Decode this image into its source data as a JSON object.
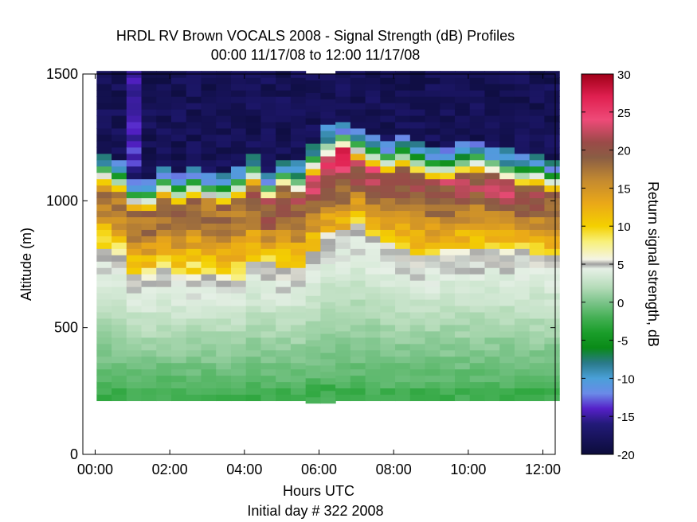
{
  "chart_data": {
    "type": "heatmap",
    "title": "HRDL RV Brown VOCALS 2008 - Signal Strength (dB) Profiles",
    "subtitle": "00:00 11/17/08 to 12:00 11/17/08",
    "xlabel": "Hours UTC",
    "xsublabel": "Initial day # 322  2008",
    "ylabel": "Altitude (m)",
    "xlim": [
      -0.33,
      12.33
    ],
    "ylim": [
      0,
      1500
    ],
    "x_tick_values": [
      0,
      2,
      4,
      6,
      8,
      10,
      12
    ],
    "x_tick_labels": [
      "00:00",
      "02:00",
      "04:00",
      "06:00",
      "08:00",
      "10:00",
      "12:00"
    ],
    "y_ticks": [
      0,
      500,
      1000,
      1500
    ],
    "grid": false,
    "colorbar": {
      "label": "Return signal strength, dB",
      "range": [
        -20,
        30
      ],
      "ticks": [
        -20,
        -15,
        -10,
        -5,
        0,
        5,
        10,
        15,
        20,
        25,
        30
      ],
      "colors": [
        {
          "v": -20,
          "c": "#0c0c3a"
        },
        {
          "v": -16,
          "c": "#221a78"
        },
        {
          "v": -14,
          "c": "#5520c8"
        },
        {
          "v": -12,
          "c": "#6a8ae8"
        },
        {
          "v": -10,
          "c": "#4aa0d8"
        },
        {
          "v": -8,
          "c": "#2a7a8a"
        },
        {
          "v": -6,
          "c": "#0a8a18"
        },
        {
          "v": -4,
          "c": "#1a9e2a"
        },
        {
          "v": -2,
          "c": "#45b055"
        },
        {
          "v": 0,
          "c": "#7cc48a"
        },
        {
          "v": 2,
          "c": "#b6dcba"
        },
        {
          "v": 4.4,
          "c": "#e6f0e6"
        },
        {
          "v": 5,
          "c": "#a0a0a0"
        },
        {
          "v": 5.6,
          "c": "#f4f4e6"
        },
        {
          "v": 8,
          "c": "#f8f078"
        },
        {
          "v": 10,
          "c": "#f4d000"
        },
        {
          "v": 13,
          "c": "#eaa818"
        },
        {
          "v": 16,
          "c": "#c48a30"
        },
        {
          "v": 19,
          "c": "#8a5e44"
        },
        {
          "v": 21,
          "c": "#9a4a48"
        },
        {
          "v": 24,
          "c": "#ee4a78"
        },
        {
          "v": 27,
          "c": "#e02050"
        },
        {
          "v": 30,
          "c": "#a00018"
        }
      ]
    },
    "profiles": {
      "time_start": 0.04,
      "time_step": 0.4,
      "alt_step": 25,
      "alt_min": [
        212,
        212,
        212,
        212,
        212,
        212,
        212,
        212,
        212,
        212,
        212,
        212,
        212,
        212,
        202,
        202,
        212,
        212,
        212,
        212,
        212,
        212,
        212,
        212,
        212,
        212,
        212,
        212,
        212,
        212,
        212
      ],
      "sig_band": [
        0.2,
        0.5,
        0.4,
        0.4,
        0.5,
        0.5,
        0.5,
        0.5,
        0.4,
        0.4,
        0.8,
        1.0,
        0.8,
        1.0,
        1.5,
        2.0,
        2.3,
        1.4,
        1.5,
        1.5,
        1.3,
        1.2,
        1.2,
        1.2,
        1.2,
        1.2,
        1.2,
        1.3,
        0.8,
        1.0,
        0.8
      ],
      "cloud_top": [
        1130,
        1100,
        1030,
        1030,
        1080,
        1050,
        1080,
        1060,
        1050,
        1080,
        1130,
        1060,
        1110,
        1090,
        1170,
        1230,
        1260,
        1230,
        1200,
        1180,
        1200,
        1170,
        1150,
        1150,
        1170,
        1180,
        1160,
        1140,
        1120,
        1130,
        1100
      ],
      "cloud_base": [
        800,
        780,
        700,
        690,
        720,
        700,
        700,
        700,
        690,
        680,
        760,
        740,
        720,
        720,
        800,
        860,
        880,
        900,
        860,
        820,
        800,
        780,
        780,
        800,
        800,
        800,
        800,
        790,
        790,
        780,
        770
      ]
    }
  }
}
